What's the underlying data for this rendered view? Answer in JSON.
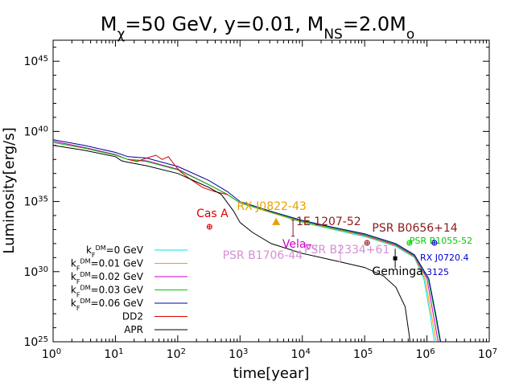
{
  "chart_data": {
    "type": "line",
    "title": {
      "parts": [
        {
          "t": "M"
        },
        {
          "t": "χ",
          "sub": true
        },
        {
          "t": "=50 GeV, y=0.01, M"
        },
        {
          "t": "NS",
          "sub": true
        },
        {
          "t": "=2.0M"
        },
        {
          "t": "o",
          "sub": true
        }
      ]
    },
    "xlabel": "time[year]",
    "ylabel": "Luminosity[erg/s]",
    "x_scale": "log",
    "y_scale": "log",
    "xlim_exp": [
      0,
      7
    ],
    "ylim_exp": [
      25,
      46.5
    ],
    "x_ticks": [
      {
        "base": "10",
        "exp": "0",
        "v": 0
      },
      {
        "base": "10",
        "exp": "1",
        "v": 1
      },
      {
        "base": "10",
        "exp": "2",
        "v": 2
      },
      {
        "base": "10",
        "exp": "3",
        "v": 3
      },
      {
        "base": "10",
        "exp": "4",
        "v": 4
      },
      {
        "base": "10",
        "exp": "5",
        "v": 5
      },
      {
        "base": "10",
        "exp": "6",
        "v": 6
      },
      {
        "base": "10",
        "exp": "7",
        "v": 7
      }
    ],
    "y_ticks": [
      {
        "base": "10",
        "exp": "25",
        "v": 25
      },
      {
        "base": "10",
        "exp": "30",
        "v": 30
      },
      {
        "base": "10",
        "exp": "35",
        "v": 35
      },
      {
        "base": "10",
        "exp": "40",
        "v": 40
      },
      {
        "base": "10",
        "exp": "45",
        "v": 45
      }
    ],
    "series": [
      {
        "name": "k_F^DM=0 GeV",
        "legend": [
          {
            "t": "k"
          },
          {
            "t": "F",
            "sub": true
          },
          {
            "t": "DM",
            "sup": true
          },
          {
            "t": "=0 GeV"
          }
        ],
        "color": "#00e5e5",
        "points": [
          [
            0,
            39.3
          ],
          [
            0.5,
            38.85
          ],
          [
            1,
            38.35
          ],
          [
            1.2,
            38.0
          ],
          [
            1.5,
            37.9
          ],
          [
            2,
            37.3
          ],
          [
            2.5,
            36.2
          ],
          [
            2.8,
            35.5
          ],
          [
            3,
            34.9
          ],
          [
            3.5,
            34.2
          ],
          [
            4,
            33.5
          ],
          [
            4.5,
            33.0
          ],
          [
            5,
            32.5
          ],
          [
            5.5,
            31.8
          ],
          [
            5.8,
            31.0
          ],
          [
            5.95,
            29.5
          ],
          [
            6.05,
            27.0
          ],
          [
            6.12,
            25.0
          ]
        ]
      },
      {
        "name": "k_F^DM=0.01 GeV",
        "legend": [
          {
            "t": "k"
          },
          {
            "t": "F",
            "sub": true
          },
          {
            "t": "DM",
            "sup": true
          },
          {
            "t": "=0.01 GeV"
          }
        ],
        "color": "#ff9900",
        "points": [
          [
            0,
            39.3
          ],
          [
            0.5,
            38.85
          ],
          [
            1,
            38.35
          ],
          [
            1.2,
            38.0
          ],
          [
            1.5,
            37.9
          ],
          [
            2,
            37.3
          ],
          [
            2.5,
            36.2
          ],
          [
            2.8,
            35.5
          ],
          [
            3,
            34.9
          ],
          [
            3.5,
            34.2
          ],
          [
            4,
            33.55
          ],
          [
            4.5,
            33.05
          ],
          [
            5,
            32.55
          ],
          [
            5.5,
            31.85
          ],
          [
            5.8,
            31.05
          ],
          [
            5.97,
            29.5
          ],
          [
            6.07,
            27.0
          ],
          [
            6.15,
            25.0
          ]
        ]
      },
      {
        "name": "k_F^DM=0.02 GeV",
        "legend": [
          {
            "t": "k"
          },
          {
            "t": "F",
            "sub": true
          },
          {
            "t": "DM",
            "sup": true
          },
          {
            "t": "=0.02 GeV"
          }
        ],
        "color": "#cc00cc",
        "points": [
          [
            0,
            39.3
          ],
          [
            0.5,
            38.85
          ],
          [
            1,
            38.35
          ],
          [
            1.2,
            38.0
          ],
          [
            1.5,
            37.9
          ],
          [
            2,
            37.3
          ],
          [
            2.5,
            36.2
          ],
          [
            2.8,
            35.5
          ],
          [
            3,
            34.9
          ],
          [
            3.5,
            34.25
          ],
          [
            4,
            33.6
          ],
          [
            4.5,
            33.1
          ],
          [
            5,
            32.6
          ],
          [
            5.5,
            31.9
          ],
          [
            5.8,
            31.1
          ],
          [
            6.0,
            29.5
          ],
          [
            6.1,
            27.0
          ],
          [
            6.18,
            25.0
          ]
        ]
      },
      {
        "name": "k_F^DM=0.03 GeV",
        "legend": [
          {
            "t": "k"
          },
          {
            "t": "F",
            "sub": true
          },
          {
            "t": "DM",
            "sup": true
          },
          {
            "t": "=0.03 GeV"
          }
        ],
        "color": "#00cc00",
        "points": [
          [
            0,
            39.2
          ],
          [
            0.5,
            38.8
          ],
          [
            1,
            38.3
          ],
          [
            1.2,
            38.0
          ],
          [
            1.5,
            37.85
          ],
          [
            2,
            37.25
          ],
          [
            2.5,
            36.2
          ],
          [
            2.8,
            35.5
          ],
          [
            3,
            34.9
          ],
          [
            3.5,
            34.25
          ],
          [
            4,
            33.6
          ],
          [
            4.5,
            33.1
          ],
          [
            5,
            32.65
          ],
          [
            5.5,
            31.95
          ],
          [
            5.8,
            31.15
          ],
          [
            6.02,
            29.5
          ],
          [
            6.13,
            27.0
          ],
          [
            6.21,
            25.0
          ]
        ]
      },
      {
        "name": "k_F^DM=0.06 GeV",
        "legend": [
          {
            "t": "k"
          },
          {
            "t": "F",
            "sub": true
          },
          {
            "t": "DM",
            "sup": true
          },
          {
            "t": "=0.06 GeV"
          }
        ],
        "color": "#000099",
        "points": [
          [
            0,
            39.4
          ],
          [
            0.5,
            39.0
          ],
          [
            1,
            38.5
          ],
          [
            1.2,
            38.2
          ],
          [
            1.5,
            38.1
          ],
          [
            2,
            37.5
          ],
          [
            2.5,
            36.5
          ],
          [
            2.8,
            35.7
          ],
          [
            3,
            35.0
          ],
          [
            3.5,
            34.3
          ],
          [
            4,
            33.65
          ],
          [
            4.5,
            33.15
          ],
          [
            5,
            32.7
          ],
          [
            5.5,
            32.0
          ],
          [
            5.8,
            31.2
          ],
          [
            6.03,
            29.5
          ],
          [
            6.14,
            27.0
          ],
          [
            6.22,
            25.0
          ]
        ]
      },
      {
        "name": "DD2",
        "legend": [
          {
            "t": "DD2"
          }
        ],
        "color": "#dd0000",
        "points": [
          [
            1.2,
            38.0
          ],
          [
            1.35,
            37.85
          ],
          [
            1.5,
            38.1
          ],
          [
            1.65,
            38.3
          ],
          [
            1.75,
            38.0
          ],
          [
            1.85,
            38.2
          ],
          [
            1.95,
            37.6
          ],
          [
            2.05,
            37.1
          ],
          [
            2.2,
            36.6
          ],
          [
            2.4,
            36.0
          ],
          [
            2.6,
            35.7
          ],
          [
            2.8,
            35.5
          ]
        ]
      },
      {
        "name": "APR",
        "legend": [
          {
            "t": "APR"
          }
        ],
        "color": "#000000",
        "points": [
          [
            0,
            39.0
          ],
          [
            0.5,
            38.65
          ],
          [
            1,
            38.2
          ],
          [
            1.1,
            37.9
          ],
          [
            1.2,
            37.8
          ],
          [
            1.5,
            37.55
          ],
          [
            2,
            37.0
          ],
          [
            2.5,
            36.0
          ],
          [
            2.7,
            35.5
          ],
          [
            2.9,
            34.3
          ],
          [
            3.0,
            33.5
          ],
          [
            3.2,
            32.8
          ],
          [
            3.5,
            32.0
          ],
          [
            4,
            31.3
          ],
          [
            4.5,
            30.8
          ],
          [
            5,
            30.3
          ],
          [
            5.3,
            29.7
          ],
          [
            5.5,
            28.9
          ],
          [
            5.65,
            27.5
          ],
          [
            5.73,
            25.0
          ]
        ]
      }
    ],
    "observations": [
      {
        "name": "Cas A",
        "color": "#dd0000",
        "x": 2.51,
        "y": 33.2,
        "marker": "circle-cross",
        "label_x": 2.3,
        "label_y": 33.9
      },
      {
        "name": "RX J0822-43",
        "color": "#e6a000",
        "x": 3.58,
        "y": 33.55,
        "marker": "triangle",
        "label_x": 2.95,
        "label_y": 34.4
      },
      {
        "name": "1E 1207-52",
        "color": "#8b1a1a",
        "x": 3.85,
        "y": 33.1,
        "marker": "errorbar",
        "label_x": 3.9,
        "label_y": 33.3
      },
      {
        "name": "Vela",
        "color": "#cc00cc",
        "x": 4.1,
        "y": 31.75,
        "marker": "tri-down",
        "label_x": 3.68,
        "label_y": 31.7
      },
      {
        "name": "PSR B1706-44",
        "color": "#d58fd5",
        "x": 4.2,
        "y": 31.7,
        "marker": "tri-down",
        "label_x": 2.72,
        "label_y": 30.9
      },
      {
        "name": "PSR B2334+61",
        "color": "#d58fd5",
        "x": 4.61,
        "y": 31.3,
        "marker": "errorbar",
        "label_x": 4.03,
        "label_y": 31.3
      },
      {
        "name": "PSR B0656+14",
        "color": "#8b1a1a",
        "x": 5.04,
        "y": 32.05,
        "marker": "circle-cross",
        "label_x": 5.12,
        "label_y": 32.85
      },
      {
        "name": "Geminga",
        "color": "#000000",
        "x": 5.49,
        "y": 30.95,
        "marker": "square",
        "label_x": 5.12,
        "label_y": 29.75
      },
      {
        "name": "PSR B1055-52",
        "color": "#00cc00",
        "x": 5.72,
        "y": 32.05,
        "marker": "circle-cross",
        "label_x": 5.72,
        "label_y": 32.0
      },
      {
        "name": "RX J0720.4",
        "color": "#0000cc",
        "x": 6.12,
        "y": 32.05,
        "marker": "circle-cross",
        "label_x": 5.89,
        "label_y": 30.8,
        "line2": "-3125"
      }
    ]
  }
}
